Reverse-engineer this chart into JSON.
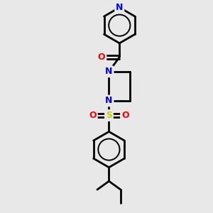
{
  "bg_color": "#e8e8e8",
  "bond_color": "#000000",
  "N_color": "#0000ff",
  "O_color": "#ff0000",
  "S_color": "#cccc00",
  "line_width": 2.0,
  "xlim": [
    0,
    10
  ],
  "ylim": [
    0,
    13
  ],
  "figsize": [
    3.0,
    3.0
  ],
  "dpi": 100
}
